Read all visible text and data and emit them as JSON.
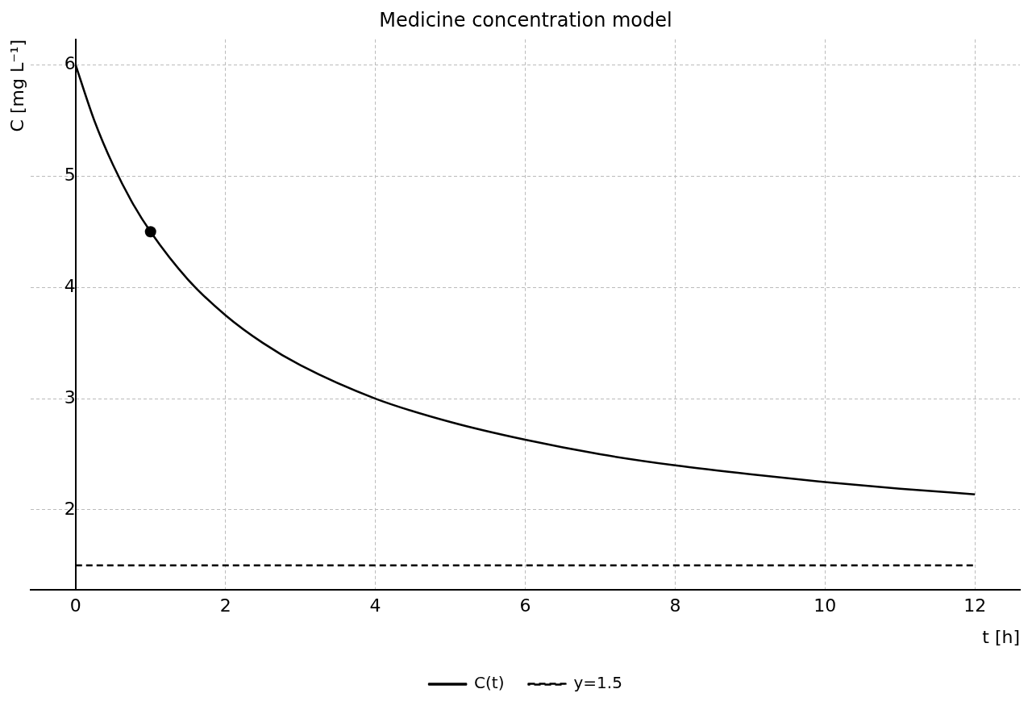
{
  "chart_data": {
    "type": "line",
    "title": "Medicine concentration model",
    "xlabel": "t [h]",
    "ylabel": "C [mg L⁻¹]",
    "xlim": [
      -0.6,
      12.6
    ],
    "ylim": [
      1.28,
      6.23
    ],
    "xticks": [
      0,
      2,
      4,
      6,
      8,
      10,
      12
    ],
    "yticks": [
      2,
      3,
      4,
      5,
      6
    ],
    "grid": true,
    "legend": "bottom",
    "marker": "none",
    "series": [
      {
        "name": "C(t)",
        "color": "#000000",
        "line_style": "solid",
        "x": [
          0,
          0.25,
          0.5,
          0.75,
          1,
          1.5,
          2,
          2.5,
          3,
          4,
          5,
          6,
          7,
          8,
          9,
          10,
          11,
          12
        ],
        "values": [
          6,
          5.5,
          5.1,
          4.77,
          4.5,
          4.07,
          3.75,
          3.5,
          3.3,
          3.0,
          2.79,
          2.63,
          2.5,
          2.4,
          2.32,
          2.25,
          2.19,
          2.14
        ]
      },
      {
        "name": "y=1.5",
        "color": "#000000",
        "line_style": "dashed",
        "x": [
          0,
          12
        ],
        "values": [
          1.5,
          1.5
        ]
      },
      {
        "type": "scatter",
        "color": "#000000",
        "marker": "circle",
        "x": [
          1
        ],
        "values": [
          4.5
        ]
      }
    ]
  }
}
